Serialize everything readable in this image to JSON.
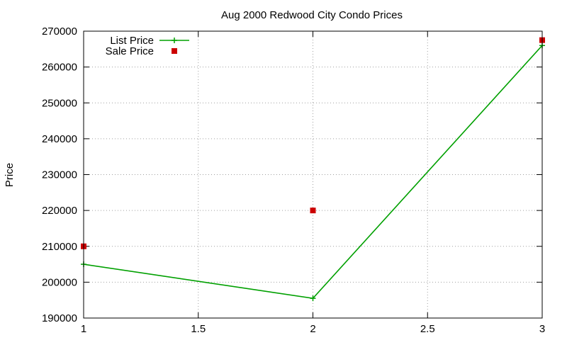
{
  "chart_data": {
    "type": "line",
    "title": "Aug 2000 Redwood City Condo Prices",
    "xlabel": "",
    "ylabel": "Price",
    "xlim": [
      1,
      3
    ],
    "ylim": [
      190000,
      270000
    ],
    "x_ticks": [
      1,
      1.5,
      2,
      2.5,
      3
    ],
    "x_tick_labels": [
      "1",
      "1.5",
      "2",
      "2.5",
      "3"
    ],
    "y_ticks": [
      190000,
      200000,
      210000,
      220000,
      230000,
      240000,
      250000,
      260000,
      270000
    ],
    "y_tick_labels": [
      "190000",
      "200000",
      "210000",
      "220000",
      "230000",
      "240000",
      "250000",
      "260000",
      "270000"
    ],
    "grid": true,
    "legend_position": "top-left",
    "series": [
      {
        "name": "List Price",
        "style": "linespoints",
        "marker": "plus",
        "color": "#00a000",
        "x": [
          1,
          2,
          3
        ],
        "y": [
          205000,
          195500,
          266000
        ]
      },
      {
        "name": "Sale Price",
        "style": "points",
        "marker": "square",
        "color": "#cc0000",
        "x": [
          1,
          2,
          3
        ],
        "y": [
          210000,
          220000,
          267500
        ]
      }
    ]
  }
}
